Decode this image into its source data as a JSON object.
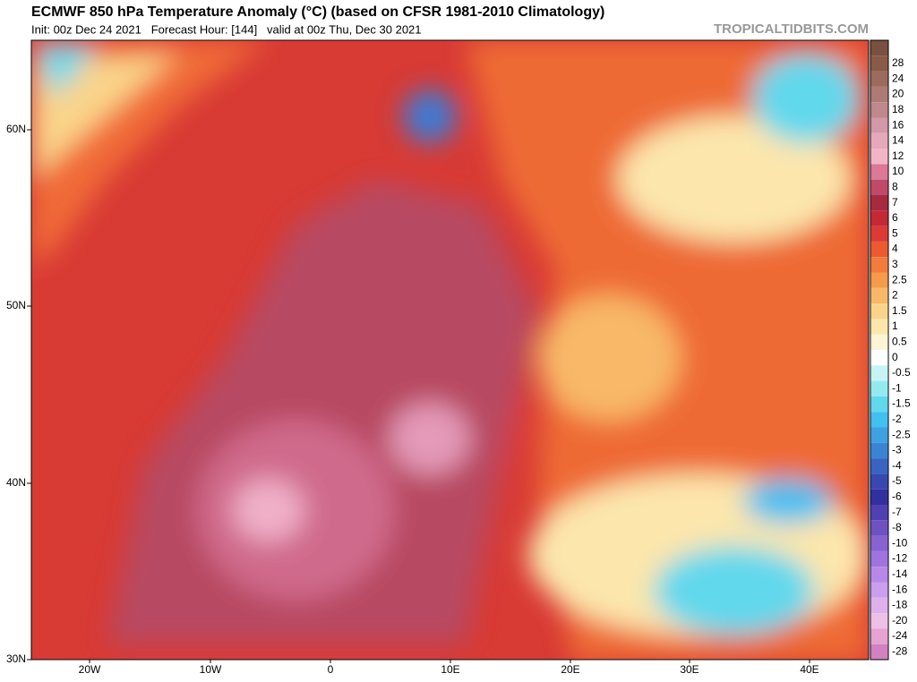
{
  "header": {
    "title": "ECMWF 850 hPa Temperature Anomaly (°C) (based on CFSR 1981-2010 Climatology)",
    "subtitle": "Init: 00z Dec 24 2021   Forecast Hour: [144]   valid at 00z Thu, Dec 30 2021",
    "watermark": "TROPICALTIDBITS.COM"
  },
  "lat_labels": [
    "60N",
    "50N",
    "40N",
    "30N"
  ],
  "lon_labels": [
    "20W",
    "10W",
    "0",
    "10E",
    "20E",
    "30E",
    "40E"
  ],
  "colorbar_top_color": "#7a5040",
  "colorbar": [
    {
      "label": "28",
      "color": "#8a5a48"
    },
    {
      "label": "24",
      "color": "#9c6a5e"
    },
    {
      "label": "20",
      "color": "#ae7a76"
    },
    {
      "label": "18",
      "color": "#c0888c"
    },
    {
      "label": "16",
      "color": "#d498a8"
    },
    {
      "label": "14",
      "color": "#e8a8bc"
    },
    {
      "label": "12",
      "color": "#f4b4c8"
    },
    {
      "label": "10",
      "color": "#dc7898"
    },
    {
      "label": "8",
      "color": "#c04a6a"
    },
    {
      "label": "7",
      "color": "#a82a40"
    },
    {
      "label": "6",
      "color": "#c42a36"
    },
    {
      "label": "5",
      "color": "#dc3a36"
    },
    {
      "label": "4",
      "color": "#ec5a30"
    },
    {
      "label": "3",
      "color": "#f27c3c"
    },
    {
      "label": "2.5",
      "color": "#f69a4c"
    },
    {
      "label": "2",
      "color": "#f8b868"
    },
    {
      "label": "1.5",
      "color": "#fad48a"
    },
    {
      "label": "1",
      "color": "#fce6ac"
    },
    {
      "label": "0.5",
      "color": "#fef4d6"
    },
    {
      "label": "0",
      "color": "#ffffff"
    },
    {
      "label": "-0.5",
      "color": "#c6f4f4"
    },
    {
      "label": "-1",
      "color": "#94eaf0"
    },
    {
      "label": "-1.5",
      "color": "#62d8ec"
    },
    {
      "label": "-2",
      "color": "#42c0f0"
    },
    {
      "label": "-2.5",
      "color": "#3ea2e2"
    },
    {
      "label": "-3",
      "color": "#3a84d4"
    },
    {
      "label": "-4",
      "color": "#3a64c2"
    },
    {
      "label": "-5",
      "color": "#3848b0"
    },
    {
      "label": "-6",
      "color": "#30309e"
    },
    {
      "label": "-7",
      "color": "#5040b2"
    },
    {
      "label": "-8",
      "color": "#6e52c2"
    },
    {
      "label": "-10",
      "color": "#8862d0"
    },
    {
      "label": "-12",
      "color": "#a074de"
    },
    {
      "label": "-14",
      "color": "#b888e8"
    },
    {
      "label": "-16",
      "color": "#cc9eee"
    },
    {
      "label": "-18",
      "color": "#deb0ec"
    },
    {
      "label": "-20",
      "color": "#eec0e8"
    },
    {
      "label": "-24",
      "color": "#e6a2d2"
    },
    {
      "label": "-28",
      "color": "#d282c0"
    }
  ]
}
